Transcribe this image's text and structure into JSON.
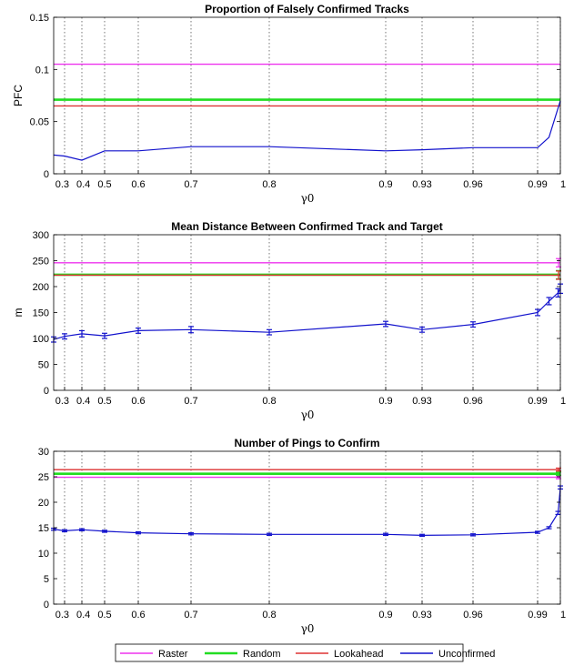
{
  "colors": {
    "Raster": "#ee33ee",
    "Random": "#22dd22",
    "Lookahead": "#dd3333",
    "Unconfirmed": "#1111cc",
    "grid": "#555555"
  },
  "xticks": [
    0.3,
    0.4,
    0.5,
    0.6,
    0.7,
    0.8,
    0.9,
    0.93,
    0.96,
    0.99,
    1
  ],
  "xtick_labels": [
    "0.3",
    "0.4",
    "0.5",
    "0.6",
    "0.7",
    "0.8",
    "0.9",
    "0.93",
    "0.96",
    "0.99",
    "1"
  ],
  "legend": {
    "items": [
      "Raster",
      "Random",
      "Lookahead",
      "Unconfirmed"
    ]
  },
  "chart_data": [
    {
      "type": "line",
      "title": "Proportion of Falsely Confirmed Tracks",
      "xlabel": "γ0",
      "ylabel": "PFC",
      "ylim": [
        0,
        0.15
      ],
      "yticks": [
        0,
        0.05,
        0.1,
        0.15
      ],
      "ytick_labels": [
        "0",
        "0.05",
        "0.1",
        "0.15"
      ],
      "hlines": [
        {
          "name": "Raster",
          "value": 0.105
        },
        {
          "name": "Random",
          "value": 0.071
        },
        {
          "name": "Lookahead",
          "value": 0.065
        }
      ],
      "series": [
        {
          "name": "Unconfirmed",
          "x": [
            0.25,
            0.3,
            0.4,
            0.5,
            0.6,
            0.7,
            0.8,
            0.9,
            0.93,
            0.96,
            0.99,
            0.995,
            1
          ],
          "values": [
            0.018,
            0.017,
            0.013,
            0.022,
            0.022,
            0.026,
            0.026,
            0.022,
            0.023,
            0.025,
            0.025,
            0.035,
            0.07
          ]
        }
      ]
    },
    {
      "type": "line",
      "title": "Mean Distance Between Confirmed Track and Target",
      "xlabel": "γ0",
      "ylabel": "m",
      "ylim": [
        0,
        300
      ],
      "yticks": [
        0,
        50,
        100,
        150,
        200,
        250,
        300
      ],
      "ytick_labels": [
        "0",
        "50",
        "100",
        "150",
        "200",
        "250",
        "300"
      ],
      "hlines": [
        {
          "name": "Raster",
          "value": 246,
          "err": 8
        },
        {
          "name": "Random",
          "value": 223,
          "err": 8
        },
        {
          "name": "Lookahead",
          "value": 222,
          "err": 8
        }
      ],
      "series": [
        {
          "name": "Unconfirmed",
          "x": [
            0.25,
            0.3,
            0.4,
            0.5,
            0.6,
            0.7,
            0.8,
            0.9,
            0.93,
            0.96,
            0.99,
            0.995,
            0.999,
            1
          ],
          "values": [
            98,
            104,
            109,
            105,
            115,
            117,
            112,
            128,
            117,
            127,
            150,
            172,
            188,
            196
          ],
          "err": [
            5,
            5,
            6,
            5,
            5,
            6,
            5,
            5,
            5,
            5,
            6,
            7,
            8,
            9
          ]
        }
      ]
    },
    {
      "type": "line",
      "title": "Number of Pings to Confirm",
      "xlabel": "γ0",
      "ylabel": "",
      "ylim": [
        0,
        30
      ],
      "yticks": [
        0,
        5,
        10,
        15,
        20,
        25,
        30
      ],
      "ytick_labels": [
        "0",
        "5",
        "10",
        "15",
        "20",
        "25",
        "30"
      ],
      "hlines": [
        {
          "name": "Raster",
          "value": 24.9,
          "err": 0.3
        },
        {
          "name": "Random",
          "value": 25.6,
          "err": 0.3
        },
        {
          "name": "Lookahead",
          "value": 26.4,
          "err": 0.3
        }
      ],
      "series": [
        {
          "name": "Unconfirmed",
          "x": [
            0.25,
            0.3,
            0.4,
            0.5,
            0.6,
            0.7,
            0.8,
            0.9,
            0.93,
            0.96,
            0.99,
            0.995,
            0.999,
            1
          ],
          "values": [
            14.7,
            14.4,
            14.6,
            14.3,
            14.0,
            13.8,
            13.7,
            13.7,
            13.5,
            13.6,
            14.1,
            15.0,
            17.9,
            22.9
          ],
          "err": [
            0.2,
            0.2,
            0.2,
            0.2,
            0.2,
            0.2,
            0.2,
            0.2,
            0.2,
            0.2,
            0.2,
            0.2,
            0.3,
            0.3
          ]
        }
      ]
    }
  ]
}
